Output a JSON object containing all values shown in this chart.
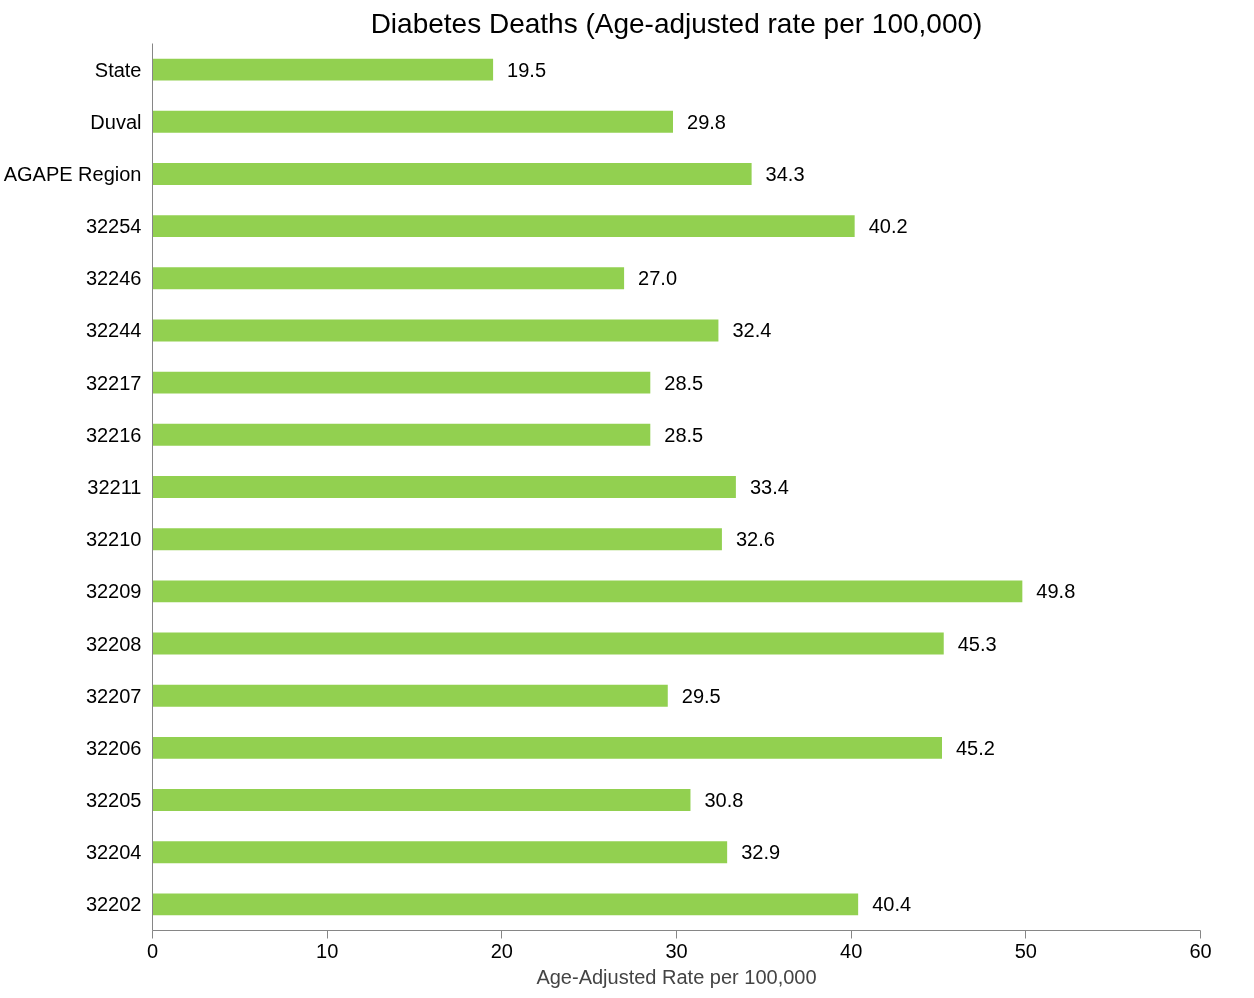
{
  "chart_data": {
    "type": "bar",
    "orientation": "horizontal",
    "title": "Diabetes Deaths (Age-adjusted rate per 100,000)",
    "xlabel": "Age-Adjusted Rate per 100,000",
    "categories": [
      "State",
      "Duval",
      "AGAPE Region",
      "32254",
      "32246",
      "32244",
      "32217",
      "32216",
      "32211",
      "32210",
      "32209",
      "32208",
      "32207",
      "32206",
      "32205",
      "32204",
      "32202"
    ],
    "values": [
      19.5,
      29.8,
      34.3,
      40.2,
      27.0,
      32.4,
      28.5,
      28.5,
      33.4,
      32.6,
      49.8,
      45.3,
      29.5,
      45.2,
      30.8,
      32.9,
      40.4
    ],
    "value_labels": [
      "19.5",
      "29.8",
      "34.3",
      "40.2",
      "27.0",
      "32.4",
      "28.5",
      "28.5",
      "33.4",
      "32.6",
      "49.8",
      "45.3",
      "29.5",
      "45.2",
      "30.8",
      "32.9",
      "40.4"
    ],
    "color": "#92d050",
    "xlim": [
      0,
      60
    ],
    "xticks": [
      0,
      10,
      20,
      30,
      40,
      50,
      60
    ],
    "grid": false
  }
}
